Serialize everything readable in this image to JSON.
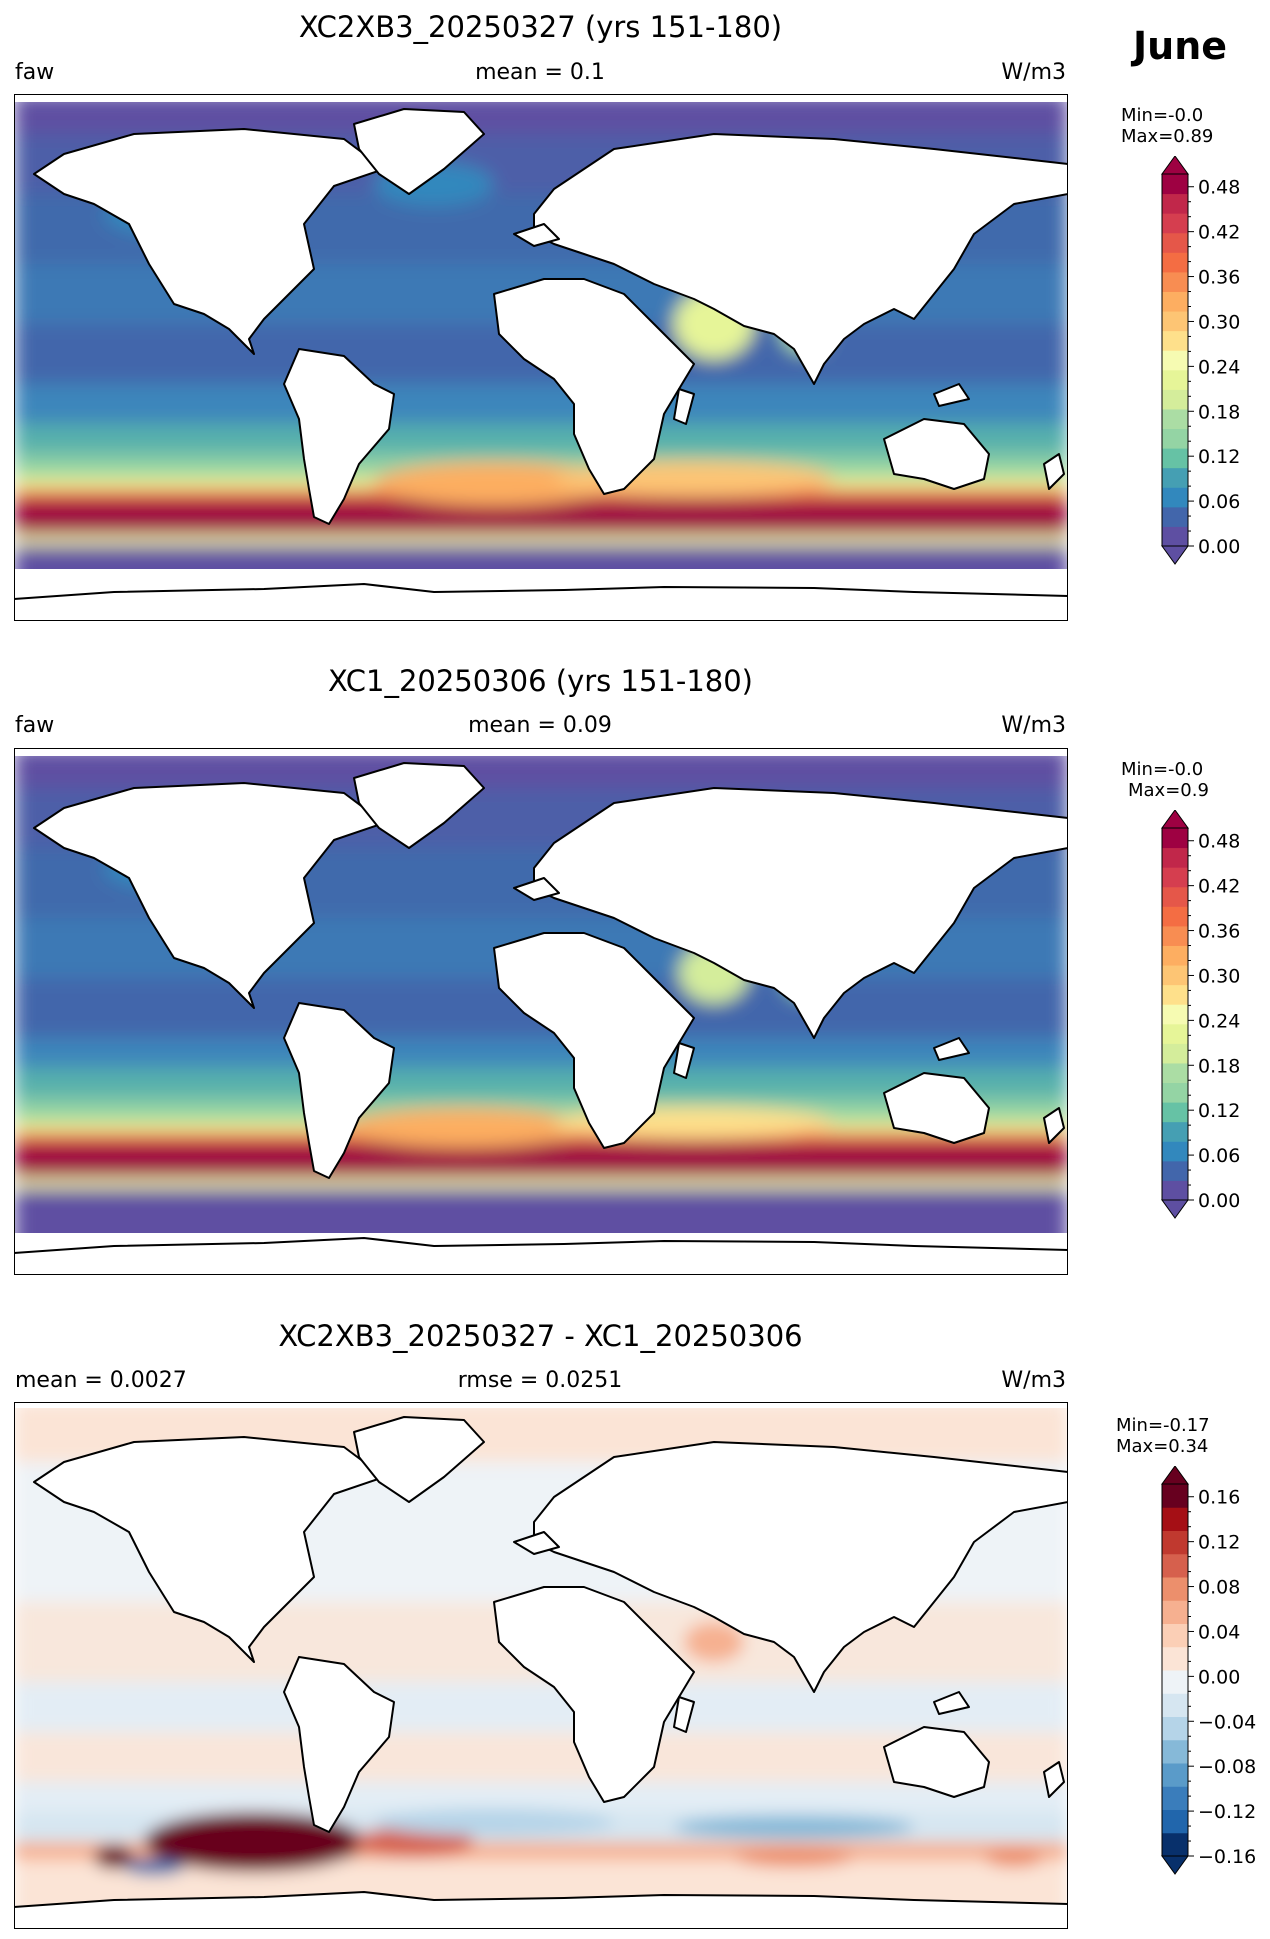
{
  "month": "June",
  "panels": [
    {
      "title": "XC2XB3_20250327 (yrs 151-180)",
      "left": "faw",
      "center": "mean = 0.1",
      "right": "W/m3",
      "min_label": "Min=-0.0",
      "max_label": "Max=0.89",
      "colorbar": {
        "cmap": "Spectral_r",
        "ticks": [
          "0.00",
          "0.06",
          "0.12",
          "0.18",
          "0.24",
          "0.30",
          "0.36",
          "0.42",
          "0.48"
        ],
        "colors": [
          "#5e4fa2",
          "#4266ab",
          "#3288bd",
          "#459fb3",
          "#66c2a5",
          "#94d4a4",
          "#abdda4",
          "#d4ed9b",
          "#e6f598",
          "#f6fbb2",
          "#fee08b",
          "#fdc574",
          "#fdae61",
          "#f88d52",
          "#f46d43",
          "#e55749",
          "#d53e4f",
          "#c1274a",
          "#9e0142"
        ]
      }
    },
    {
      "title": "XC1_20250306 (yrs 151-180)",
      "left": "faw",
      "center": "mean = 0.09",
      "right": "W/m3",
      "min_label": "Min=-0.0",
      "max_label": "Max=0.9",
      "colorbar": {
        "cmap": "Spectral_r",
        "ticks": [
          "0.00",
          "0.06",
          "0.12",
          "0.18",
          "0.24",
          "0.30",
          "0.36",
          "0.42",
          "0.48"
        ],
        "colors": [
          "#5e4fa2",
          "#4266ab",
          "#3288bd",
          "#459fb3",
          "#66c2a5",
          "#94d4a4",
          "#abdda4",
          "#d4ed9b",
          "#e6f598",
          "#f6fbb2",
          "#fee08b",
          "#fdc574",
          "#fdae61",
          "#f88d52",
          "#f46d43",
          "#e55749",
          "#d53e4f",
          "#c1274a",
          "#9e0142"
        ]
      }
    },
    {
      "title": "XC2XB3_20250327 - XC1_20250306",
      "left": "mean = 0.0027",
      "center": "rmse = 0.0251",
      "right": "W/m3",
      "min_label": "Min=-0.17",
      "max_label": "Max=0.34",
      "colorbar": {
        "cmap": "RdBu_r",
        "ticks": [
          "−0.16",
          "−0.12",
          "−0.08",
          "−0.04",
          "0.00",
          "0.04",
          "0.08",
          "0.12",
          "0.16"
        ],
        "colors": [
          "#08306b",
          "#2166ac",
          "#3a7dbb",
          "#5a9bc9",
          "#86b9d8",
          "#b5d4e8",
          "#d6e6f1",
          "#eef3f7",
          "#fbe4d6",
          "#fbcfb6",
          "#f6b090",
          "#ec8f6c",
          "#d6604d",
          "#c0392f",
          "#a50f15",
          "#67001f"
        ]
      }
    }
  ]
}
